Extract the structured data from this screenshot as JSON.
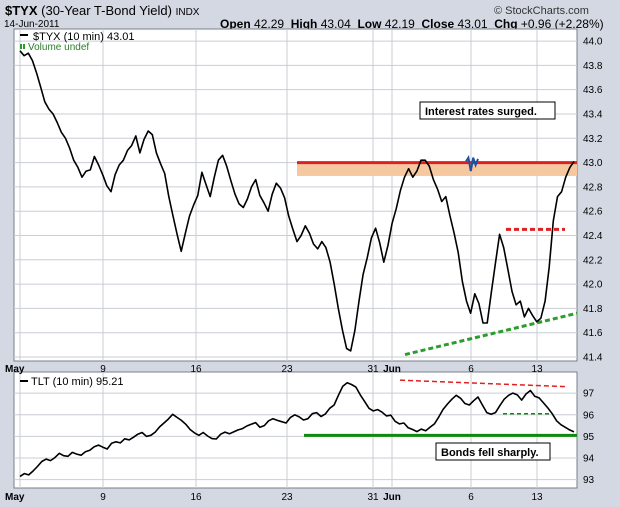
{
  "header": {
    "symbol": "$TYX",
    "description": "(30-Year T-Bond Yield)",
    "exchange": "INDX",
    "date": "14-Jun-2011",
    "copyright": "© StockCharts.com",
    "ohlc": {
      "open_label": "Open",
      "open": "42.29",
      "high_label": "High",
      "high": "43.04",
      "low_label": "Low",
      "low": "42.19",
      "close_label": "Close",
      "close": "43.01",
      "chg_label": "Chg",
      "chg": "+0.96 (+2.28%)"
    }
  },
  "colors": {
    "background": "#d3d8e3",
    "panel": "#ffffff",
    "grid": "#c9cdd5",
    "price": "#000000",
    "resistance": "#e02020",
    "resistance_zone": "#f5c8a0",
    "trendline": "#2a9d2a",
    "support": "#0e8a0e",
    "highlight": "#2050a0"
  },
  "chart_data": [
    {
      "type": "line",
      "legend": "$TYX (10 min) 43.01",
      "volume_label": "Volume undef",
      "ylim": [
        41.4,
        44.05
      ],
      "yticks": [
        "41.4",
        "41.6",
        "41.8",
        "42.0",
        "42.2",
        "42.4",
        "42.6",
        "42.8",
        "43.0",
        "43.2",
        "43.4",
        "43.6",
        "43.8",
        "44.0"
      ],
      "x_labels": [
        "May",
        "9",
        "16",
        "23",
        "31",
        "Jun",
        "6",
        "13"
      ],
      "series": [
        {
          "values": [
            43.92,
            43.88,
            43.9,
            43.84,
            43.74,
            43.62,
            43.5,
            43.44,
            43.4,
            43.33,
            43.25,
            43.2,
            43.12,
            43.02,
            42.96,
            42.88,
            42.93,
            42.94,
            43.05,
            42.98,
            42.9,
            42.81,
            42.76,
            42.9,
            42.98,
            43.02,
            43.1,
            43.14,
            43.22,
            43.08,
            43.19,
            43.26,
            43.23,
            43.08,
            42.99,
            42.91,
            42.72,
            42.56,
            42.41,
            42.27,
            42.42,
            42.56,
            42.65,
            42.73,
            42.92,
            42.82,
            42.72,
            42.88,
            43.02,
            43.06,
            42.97,
            42.85,
            42.74,
            42.66,
            42.63,
            42.7,
            42.8,
            42.86,
            42.73,
            42.67,
            42.6,
            42.74,
            42.83,
            42.79,
            42.71,
            42.56,
            42.45,
            42.35,
            42.4,
            42.48,
            42.42,
            42.33,
            42.29,
            42.35,
            42.3,
            42.18,
            42.0,
            41.8,
            41.62,
            41.47,
            41.45,
            41.62,
            41.86,
            42.08,
            42.22,
            42.38,
            42.46,
            42.34,
            42.18,
            42.32,
            42.5,
            42.62,
            42.77,
            42.88,
            42.95,
            42.88,
            42.93,
            43.02,
            43.02,
            42.97,
            42.86,
            42.78,
            42.68,
            42.72,
            42.56,
            42.42,
            42.26,
            42.02,
            41.86,
            41.76,
            41.92,
            41.84,
            41.68,
            41.68,
            41.93,
            42.17,
            42.41,
            42.3,
            42.12,
            41.94,
            41.83,
            41.86,
            41.73,
            41.8,
            41.74,
            41.69,
            41.72,
            41.86,
            42.14,
            42.52,
            42.72,
            42.76,
            42.88,
            42.96,
            43.01
          ],
          "highlight_values": [
            43.01,
            43.04,
            42.93,
            43.04,
            42.98,
            43.03
          ]
        }
      ],
      "annotations": {
        "callout": "Interest rates surged.",
        "resistance_level": 43.0,
        "resistance_zone": [
          42.89,
          43.0
        ],
        "minor_resistance": 42.45,
        "trendline_start": 41.42,
        "trendline_end": 41.76
      }
    },
    {
      "type": "line",
      "legend": "TLT (10 min) 95.21",
      "ylim": [
        92.8,
        97.7
      ],
      "yticks": [
        "93",
        "94",
        "95",
        "96",
        "97"
      ],
      "x_labels": [
        "May",
        "9",
        "16",
        "23",
        "31",
        "Jun",
        "6",
        "13"
      ],
      "series": [
        {
          "values": [
            93.15,
            93.28,
            93.22,
            93.4,
            93.61,
            93.84,
            93.95,
            93.88,
            94.02,
            94.22,
            94.11,
            94.08,
            94.26,
            94.18,
            94.13,
            94.29,
            94.36,
            94.52,
            94.6,
            94.5,
            94.42,
            94.68,
            94.75,
            94.7,
            94.89,
            94.84,
            94.96,
            95.1,
            95.18,
            95.0,
            95.05,
            95.2,
            95.44,
            95.62,
            95.8,
            96.02,
            95.88,
            95.74,
            95.56,
            95.32,
            95.16,
            95.05,
            95.18,
            95.02,
            94.9,
            94.88,
            95.1,
            95.2,
            95.12,
            95.21,
            95.3,
            95.36,
            95.48,
            95.56,
            95.64,
            95.42,
            95.5,
            95.72,
            95.82,
            95.74,
            95.68,
            95.62,
            95.88,
            96.0,
            95.9,
            95.76,
            95.82,
            96.05,
            96.1,
            95.92,
            96.04,
            96.3,
            96.45,
            96.9,
            97.32,
            97.48,
            97.4,
            97.28,
            96.92,
            96.62,
            96.3,
            96.18,
            96.24,
            96.12,
            95.95,
            95.98,
            95.7,
            95.58,
            95.62,
            95.4,
            95.32,
            95.22,
            95.34,
            95.26,
            95.42,
            95.58,
            95.9,
            96.25,
            96.5,
            96.72,
            96.9,
            96.76,
            96.52,
            96.45,
            96.65,
            96.82,
            96.45,
            96.1,
            96.02,
            96.1,
            96.42,
            96.72,
            96.9,
            97.0,
            96.92,
            96.68,
            96.96,
            97.12,
            96.86,
            96.78,
            96.55,
            96.32,
            96.05,
            95.72,
            95.54,
            95.42,
            95.3,
            95.21
          ],
          "highlight_values": []
        }
      ],
      "annotations": {
        "callout": "Bonds fell sharply.",
        "downtrend_start": 97.6,
        "downtrend_end": 97.3,
        "minor_support": 96.05,
        "support_level": 95.05
      }
    }
  ]
}
